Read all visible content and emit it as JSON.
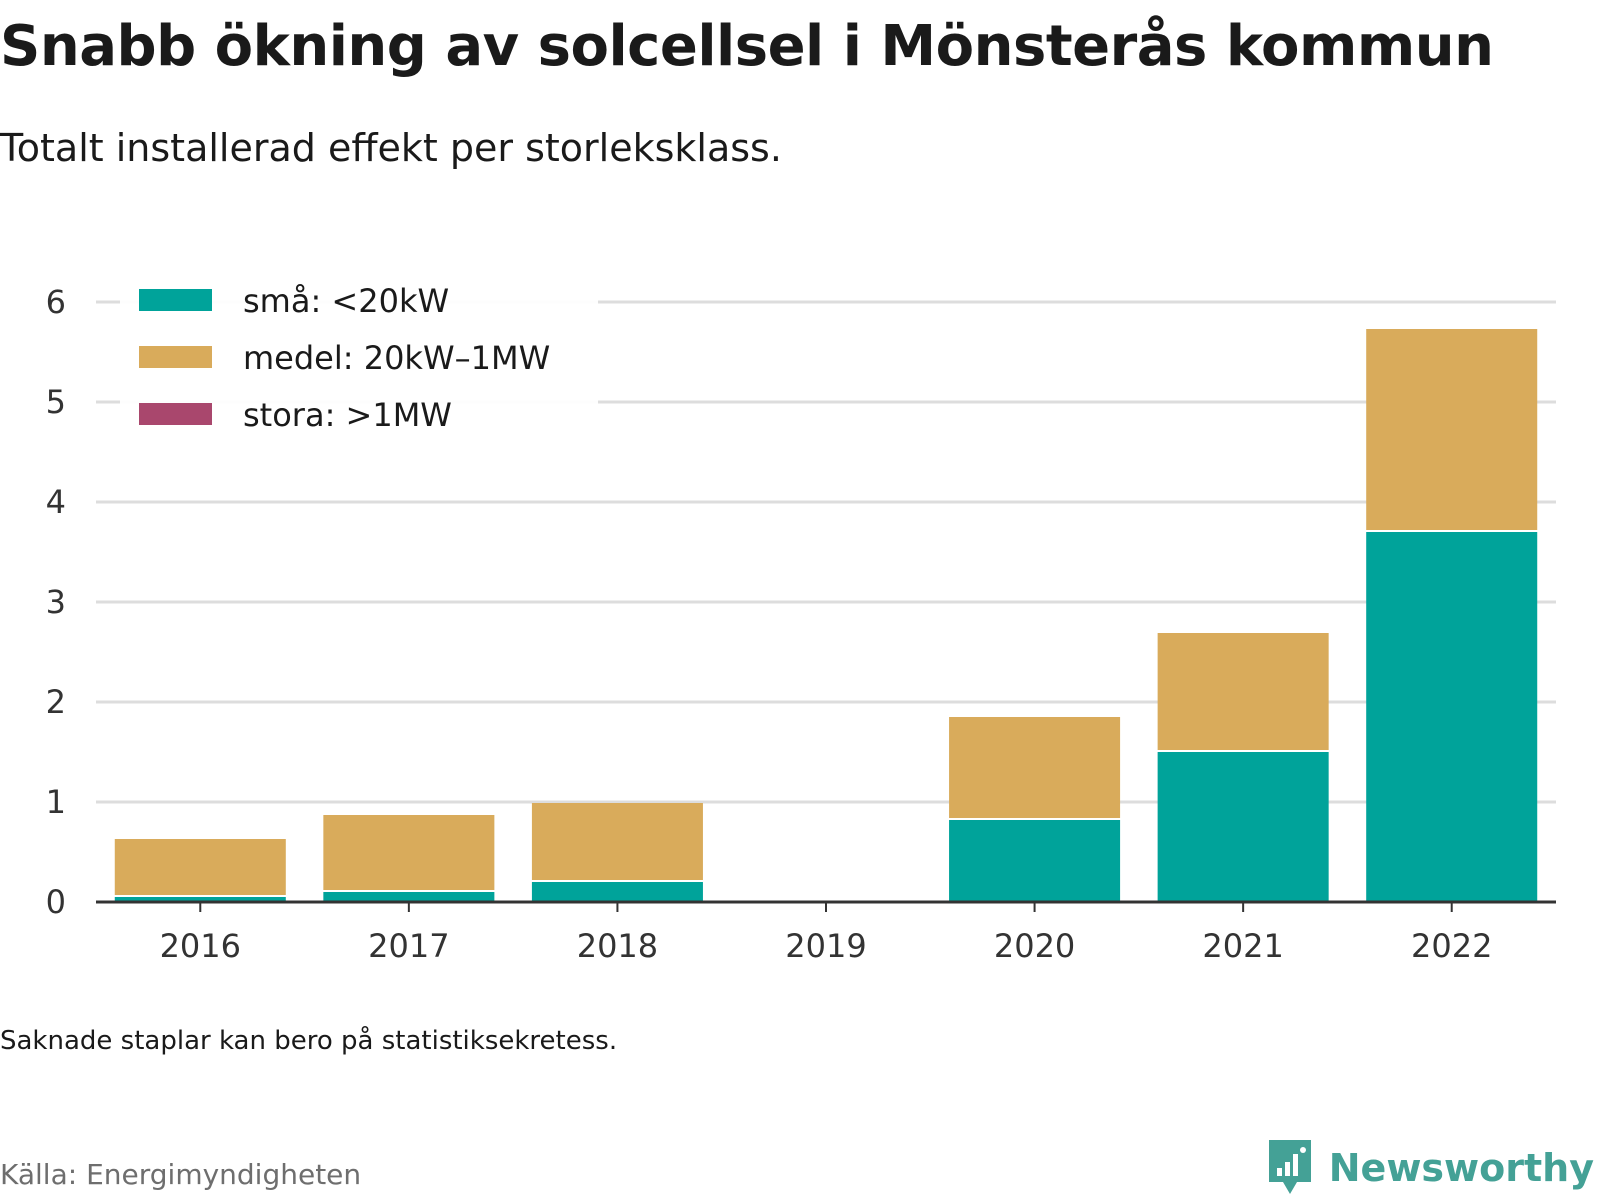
{
  "header": {
    "title": "Snabb ökning av solcellsel i Mönsterås kommun",
    "subtitle": "Totalt installerad effekt per storleksklass."
  },
  "footer": {
    "note": "Saknade staplar kan bero på statistiksekretess.",
    "source": "Källa: Energimyndigheten",
    "brand": "Newsworthy",
    "brand_icon": "newsworthy-logo-icon"
  },
  "colors": {
    "small": "#00a39a",
    "medium": "#d9ab5b",
    "large": "#a9476d",
    "grid": "#dddddd",
    "axis": "#333333",
    "brand": "#44a196"
  },
  "chart_data": {
    "type": "bar",
    "stacked": true,
    "title": "Snabb ökning av solcellsel i Mönsterås kommun",
    "subtitle": "Totalt installerad effekt per storleksklass.",
    "xlabel": "",
    "ylabel": "",
    "categories": [
      "2016",
      "2017",
      "2018",
      "2019",
      "2020",
      "2021",
      "2022"
    ],
    "ylim": [
      0,
      6
    ],
    "yticks": [
      0,
      1,
      2,
      3,
      4,
      5,
      6
    ],
    "grid": true,
    "legend_position": "top-left",
    "series": [
      {
        "name": "små: <20kW",
        "color": "#00a39a",
        "values": [
          0.05,
          0.1,
          0.2,
          null,
          0.82,
          1.5,
          3.7
        ]
      },
      {
        "name": "medel: 20kW–1MW",
        "color": "#d9ab5b",
        "values": [
          0.58,
          0.77,
          0.79,
          null,
          1.03,
          1.19,
          2.03
        ]
      },
      {
        "name": "stora: >1MW",
        "color": "#a9476d",
        "values": [
          null,
          null,
          null,
          null,
          null,
          null,
          null
        ]
      }
    ]
  }
}
